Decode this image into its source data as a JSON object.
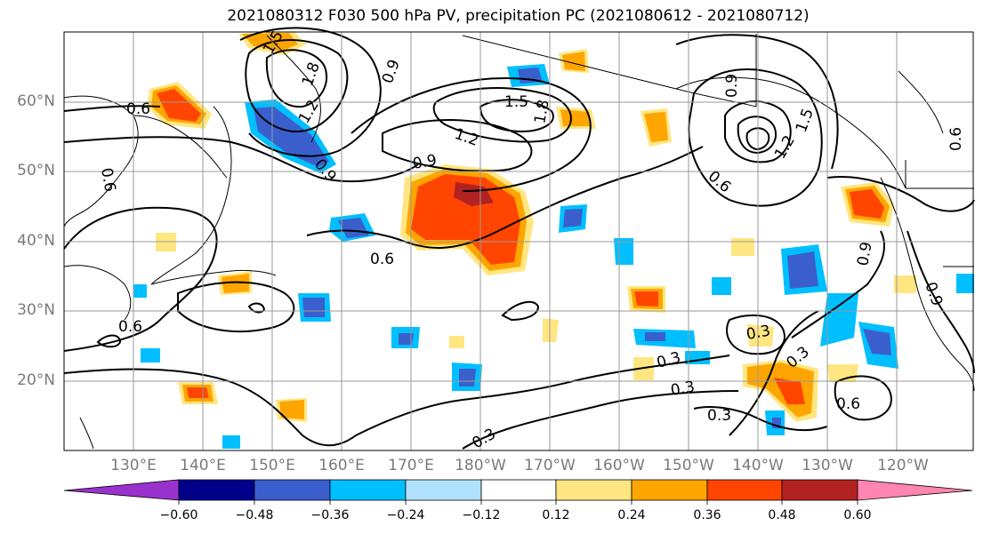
{
  "title": "2021080312 F030 500 hPa PV, precipitation PC (2021080612 - 2021080712)",
  "lat_labels": [
    "60°N",
    "50°N",
    "40°N",
    "30°N",
    "20°N"
  ],
  "lon_labels": [
    "130°E",
    "140°E",
    "150°E",
    "160°E",
    "170°E",
    "180°W",
    "170°W",
    "160°W",
    "150°W",
    "140°W",
    "130°W",
    "120°W"
  ],
  "contour_labels": [
    "1.5",
    "1.8",
    "0.9",
    "1.2",
    "0.6",
    "0.6",
    "0.9",
    "1.5",
    "1.8",
    "1.2",
    "0.9",
    "0.9",
    "0.6",
    "1.2",
    "1.5",
    "0.6",
    "0.6",
    "0.9",
    "0.9",
    "0.6",
    "0.3",
    "0.3",
    "0.3",
    "0.3",
    "0.3",
    "0.6",
    "0.3"
  ],
  "colorbar": {
    "ticks": [
      "−0.60",
      "−0.48",
      "−0.36",
      "−0.24",
      "−0.12",
      "0.12",
      "0.24",
      "0.36",
      "0.48",
      "0.60"
    ],
    "colors": [
      "#9932CC",
      "#00008B",
      "#3A5FCD",
      "#00BFFF",
      "#B0E2FF",
      "#FFFFFF",
      "#FFE680",
      "#FFA500",
      "#FF4500",
      "#B22222",
      "#FF86B0"
    ]
  }
}
